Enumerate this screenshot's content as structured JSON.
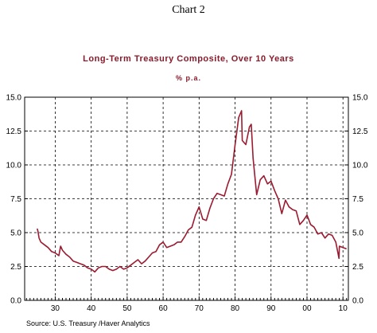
{
  "chart_data": {
    "type": "line",
    "chart_label": "Chart 2",
    "title": "Long-Term Treasury Composite, Over 10 Years",
    "subtitle": "% p.a.",
    "source": "Source:  U.S. Treasury /Haver Analytics",
    "xlabel": "",
    "ylabel": "",
    "xlim": [
      1921.5,
      2011.5
    ],
    "ylim": [
      0,
      15
    ],
    "y_ticks": [
      0.0,
      2.5,
      5.0,
      7.5,
      10.0,
      12.5,
      15.0
    ],
    "y_tick_labels": [
      "0.0",
      "2.5",
      "5.0",
      "7.5",
      "10.0",
      "12.5",
      "15.0"
    ],
    "x_ticks": [
      1930,
      1940,
      1950,
      1960,
      1970,
      1980,
      1990,
      2000,
      2010
    ],
    "x_tick_labels": [
      "30",
      "40",
      "50",
      "60",
      "70",
      "80",
      "90",
      "00",
      "10"
    ],
    "grid": true,
    "line_color": "#9b1b30",
    "series": [
      {
        "name": "",
        "x": [
          1925,
          1925.2,
          1925.5,
          1926,
          1927,
          1928,
          1929,
          1930,
          1931,
          1931.5,
          1932,
          1933,
          1934,
          1935,
          1936,
          1937,
          1938,
          1939,
          1940,
          1941,
          1942,
          1943,
          1944,
          1945,
          1946,
          1947,
          1948,
          1949,
          1950,
          1951,
          1952,
          1953,
          1954,
          1955,
          1956,
          1957,
          1958,
          1959,
          1960,
          1961,
          1962,
          1963,
          1964,
          1965,
          1966,
          1967,
          1968,
          1969,
          1970,
          1971,
          1972,
          1973,
          1974,
          1975,
          1976,
          1977,
          1978,
          1979,
          1980,
          1981,
          1981.8,
          1982,
          1983,
          1984,
          1984.5,
          1985,
          1986,
          1987,
          1988,
          1989,
          1990,
          1991,
          1992,
          1993,
          1994,
          1995,
          1996,
          1997,
          1998,
          1999,
          2000,
          2001,
          2002,
          2003,
          2004,
          2005,
          2006,
          2007,
          2008,
          2008.9,
          2009,
          2010,
          2011
        ],
        "y": [
          5.3,
          5.1,
          4.6,
          4.3,
          4.1,
          3.9,
          3.6,
          3.5,
          3.3,
          4.0,
          3.7,
          3.4,
          3.2,
          2.9,
          2.8,
          2.7,
          2.6,
          2.4,
          2.3,
          2.1,
          2.4,
          2.5,
          2.5,
          2.3,
          2.2,
          2.3,
          2.5,
          2.3,
          2.4,
          2.6,
          2.8,
          3.0,
          2.7,
          2.9,
          3.2,
          3.5,
          3.6,
          4.1,
          4.3,
          3.9,
          4.0,
          4.1,
          4.3,
          4.3,
          4.7,
          5.2,
          5.4,
          6.3,
          6.9,
          6.0,
          5.9,
          6.8,
          7.5,
          7.9,
          7.8,
          7.7,
          8.6,
          9.3,
          11.5,
          13.5,
          14.0,
          11.8,
          11.5,
          12.8,
          13.0,
          10.5,
          7.8,
          8.9,
          9.2,
          8.6,
          8.8,
          8.1,
          7.5,
          6.4,
          7.4,
          6.9,
          6.7,
          6.6,
          5.6,
          5.9,
          6.3,
          5.6,
          5.4,
          4.9,
          5.0,
          4.6,
          4.9,
          4.8,
          4.3,
          3.1,
          4.0,
          3.9,
          3.8
        ]
      }
    ]
  }
}
